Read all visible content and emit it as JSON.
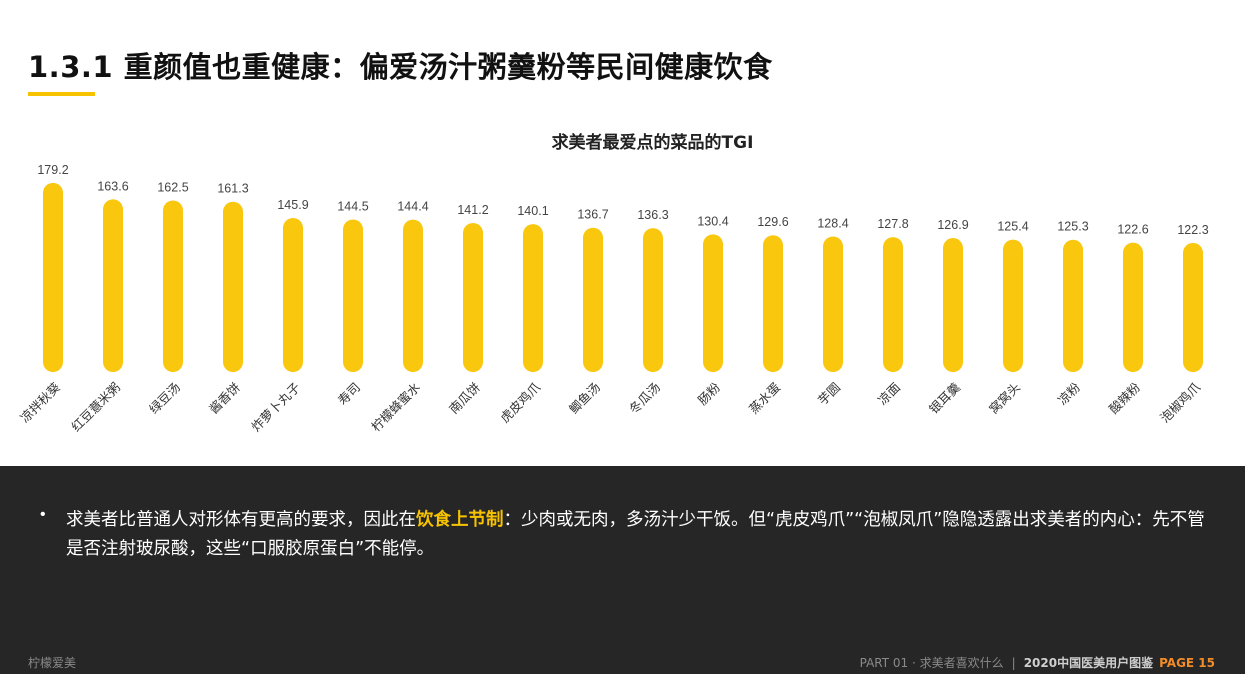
{
  "header": {
    "title": "1.3.1 重颜值也重健康：偏爱汤汁粥羹粉等民间健康饮食",
    "accent_color": "#f7c300"
  },
  "chart_data": {
    "type": "bar",
    "title": "求美者最爱点的菜品的TGI",
    "xlabel": "",
    "ylabel": "",
    "ylim": [
      0,
      180
    ],
    "categories": [
      "凉拌秋葵",
      "红豆薏米粥",
      "绿豆汤",
      "酱香饼",
      "炸萝卜丸子",
      "寿司",
      "柠檬蜂蜜水",
      "南瓜饼",
      "虎皮鸡爪",
      "鲫鱼汤",
      "冬瓜汤",
      "肠粉",
      "蒸水蛋",
      "芋圆",
      "凉面",
      "银耳羹",
      "窝窝头",
      "凉粉",
      "酸辣粉",
      "泡椒鸡爪"
    ],
    "values": [
      179.2,
      163.6,
      162.5,
      161.3,
      145.9,
      144.5,
      144.4,
      141.2,
      140.1,
      136.7,
      136.3,
      130.4,
      129.6,
      128.4,
      127.8,
      126.9,
      125.4,
      125.3,
      122.6,
      122.3
    ],
    "value_labels": [
      "179.2",
      "163.6",
      "162.5",
      "161.3",
      "145.9",
      "144.5",
      "144.4",
      "141.2",
      "140.1",
      "136.7",
      "136.3",
      "130.4",
      "129.6",
      "128.4",
      "127.8",
      "126.9",
      "125.4",
      "125.3",
      "122.6",
      "122.3"
    ],
    "bar_color": "#f9c80e",
    "grid": false,
    "legend": "none"
  },
  "summary": {
    "bullet": "•",
    "text_before": "求美者比普通人对形体有更高的要求，因此在",
    "highlight": "饮食上节制",
    "text_after": "：少肉或无肉，多汤汁少干饭。但“虎皮鸡爪”“泡椒凤爪”隐隐透露出求美者的内心：先不管是否注射玻尿酸，这些“口服胶原蛋白”不能停。"
  },
  "footer": {
    "brand": "柠檬爱美",
    "part": "PART 01 · 求美者喜欢什么",
    "separator": "|",
    "report": "2020中国医美用户图鉴",
    "page_label": "PAGE 15"
  }
}
